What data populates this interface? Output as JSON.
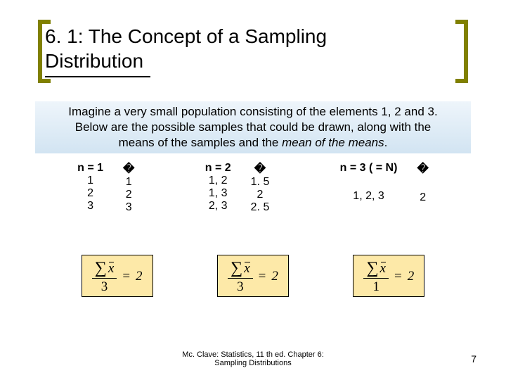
{
  "title": {
    "line1": "6. 1: The Concept of a Sampling",
    "line2": "Distribution"
  },
  "intro": {
    "text1": "Imagine a very small population consisting of the elements 1, 2 and 3.",
    "text2": "Below are the possible samples that could be drawn, along with the",
    "text3_prefix": "means of the samples and the ",
    "text3_italic": "mean of the means",
    "text3_suffix": "."
  },
  "columns": {
    "c1": {
      "header_left": "n = 1",
      "header_right": "�",
      "rows_left": [
        "1",
        "2",
        "3"
      ],
      "rows_right": [
        "1",
        "2",
        "3"
      ]
    },
    "c2": {
      "header_left": "n = 2",
      "header_right": "�",
      "rows_left": [
        "1, 2",
        "1, 3",
        "2, 3"
      ],
      "rows_right": [
        "1. 5",
        "2",
        "2. 5"
      ]
    },
    "c3": {
      "header_left": "n = 3 ( = N)",
      "header_right": "�",
      "rows_left": [
        "1, 2, 3"
      ],
      "rows_right": [
        "2"
      ]
    }
  },
  "formulas": {
    "f1": {
      "denominator": "3",
      "result": "2"
    },
    "f2": {
      "denominator": "3",
      "result": "2"
    },
    "f3": {
      "denominator": "1",
      "result": "2"
    }
  },
  "footer": {
    "line1": "Mc. Clave: Statistics, 11 th ed. Chapter 6:",
    "line2": "Sampling Distributions"
  },
  "page_number": "7",
  "colors": {
    "bracket": "#808000",
    "formula_bg": "#fde9a8",
    "intro_bg_top": "#eef5fb",
    "intro_bg_bottom": "#d2e4f2"
  }
}
